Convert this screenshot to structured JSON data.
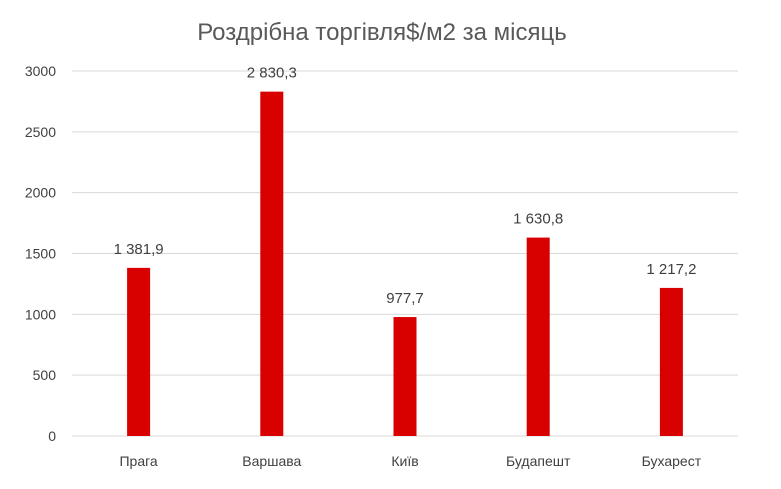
{
  "chart_data": {
    "type": "bar",
    "title": "Роздрібна торгівля$/м2 за місяць",
    "xlabel": "",
    "ylabel": "",
    "categories": [
      "Прага",
      "Варшава",
      "Київ",
      "Будапешт",
      "Бухарест"
    ],
    "values": [
      1381.9,
      2830.3,
      977.7,
      1630.8,
      1217.2
    ],
    "data_labels": [
      "1 381,9",
      "2 830,3",
      "977,7",
      "1 630,8",
      "1 217,2"
    ],
    "ylim": [
      0,
      3000
    ],
    "yticks": [
      0,
      500,
      1000,
      1500,
      2000,
      2500,
      3000
    ],
    "grid": true,
    "legend": "none",
    "colors": {
      "bar": "#d90000"
    }
  }
}
